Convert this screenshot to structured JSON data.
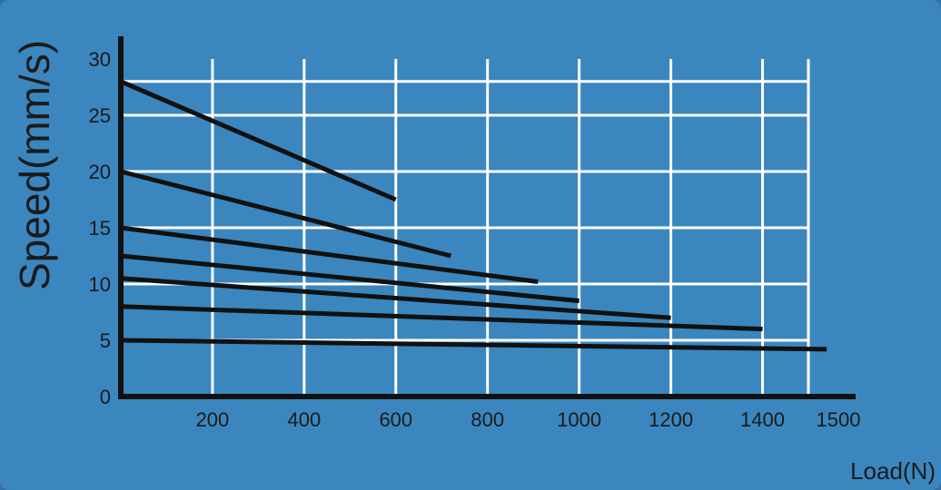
{
  "chart_data": {
    "type": "line",
    "title": "",
    "xlabel": "Load(N)",
    "ylabel": "Speed(mm/s)",
    "xlim": [
      0,
      1500
    ],
    "ylim": [
      0,
      30
    ],
    "grid": true,
    "x_ticks": [
      "200",
      "400",
      "600",
      "800",
      "1000",
      "1200",
      "1400",
      "1500"
    ],
    "y_ticks": [
      "0",
      "5",
      "10",
      "15",
      "20",
      "25",
      "30"
    ],
    "series": [
      {
        "x": [
          0,
          600
        ],
        "y": [
          28,
          17.5
        ]
      },
      {
        "x": [
          0,
          720
        ],
        "y": [
          20,
          12.5
        ]
      },
      {
        "x": [
          0,
          910
        ],
        "y": [
          15,
          10.2
        ]
      },
      {
        "x": [
          0,
          1000
        ],
        "y": [
          12.5,
          8.5
        ]
      },
      {
        "x": [
          0,
          1200
        ],
        "y": [
          10.5,
          7
        ]
      },
      {
        "x": [
          0,
          1400
        ],
        "y": [
          8,
          6
        ]
      },
      {
        "x": [
          0,
          1540
        ],
        "y": [
          5,
          4.2
        ]
      }
    ],
    "colors": {
      "background": "#3b86bf",
      "grid": "#ffffff",
      "lines": "#111111",
      "axes": "#111111"
    }
  }
}
